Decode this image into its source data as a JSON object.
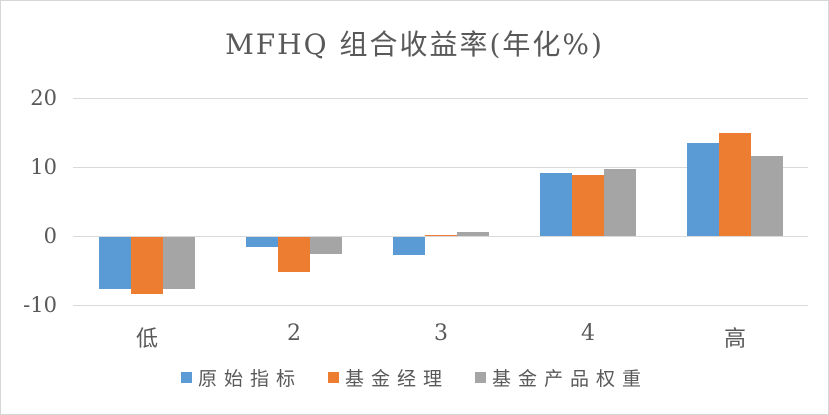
{
  "chart_data": {
    "type": "bar",
    "title": "MFHQ 组合收益率(年化%)",
    "categories": [
      "低",
      "2",
      "3",
      "4",
      "高"
    ],
    "series": [
      {
        "name": "原始指标",
        "color": "#5B9BD5",
        "values": [
          -7.5,
          -1.5,
          -2.6,
          9.1,
          13.5
        ]
      },
      {
        "name": "基金经理",
        "color": "#ED7D31",
        "values": [
          -8.2,
          -5.0,
          0.15,
          8.8,
          15.0
        ]
      },
      {
        "name": "基金产品权重",
        "color": "#A5A5A5",
        "values": [
          -7.5,
          -2.5,
          0.55,
          9.7,
          11.6
        ]
      }
    ],
    "ylim": [
      -10,
      20
    ],
    "yticks": [
      20,
      10,
      0,
      -10
    ],
    "xlabel": "",
    "ylabel": "",
    "grid": true,
    "legend_position": "bottom",
    "colors": {
      "text": "#595959",
      "gridline": "#D9D9D9",
      "border": "#D6D6D6",
      "background": "#FFFFFF"
    }
  }
}
